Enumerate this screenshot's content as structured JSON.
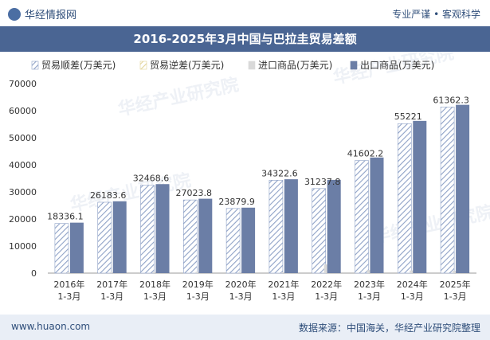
{
  "header": {
    "brand": "华经情报网",
    "tagline": "专业严谨 • 客观科学"
  },
  "footer": {
    "url": "www.huaon.com",
    "source": "数据来源：中国海关，华经产业研究院整理"
  },
  "watermark": "华经产业研究院",
  "colors": {
    "title_bg": "#4a6593",
    "export": "#6b7ea6",
    "import": "#d9d9d9",
    "surplus_hatch": "#8fa2c7",
    "deficit_hatch": "#e3d49a"
  },
  "chart_data": {
    "type": "bar",
    "title": "2016-2025年3月中国与巴拉圭贸易差额",
    "categories": [
      "2016年\n1-3月",
      "2017年\n1-3月",
      "2018年\n1-3月",
      "2019年\n1-3月",
      "2020年\n1-3月",
      "2021年\n1-3月",
      "2022年\n1-3月",
      "2023年\n1-3月",
      "2024年\n1-3月",
      "2025年\n1-3月"
    ],
    "series": [
      {
        "name": "贸易顺差(万美元)",
        "values": [
          18336.1,
          26183.6,
          32468.6,
          27023.8,
          23879.9,
          34322.6,
          31237.8,
          41602.2,
          55221,
          61362.3
        ]
      },
      {
        "name": "贸易逆差(万美元)",
        "values": [
          0,
          0,
          0,
          0,
          0,
          0,
          0,
          0,
          0,
          0
        ]
      },
      {
        "name": "进口商品(万美元)",
        "values": [
          300,
          350,
          400,
          450,
          300,
          350,
          3200,
          1100,
          1000,
          800
        ]
      },
      {
        "name": "出口商品(万美元)",
        "values": [
          18636.1,
          26533.6,
          32868.6,
          27473.8,
          24179.9,
          34672.6,
          34437.8,
          42702.2,
          56221,
          62162.3
        ]
      }
    ],
    "data_labels": [
      "18336.1",
      "26183.6",
      "32468.6",
      "27023.8",
      "23879.9",
      "34322.6",
      "31237.8",
      "41602.2",
      "55221",
      "61362.3"
    ],
    "ylim": [
      0,
      70000
    ],
    "yticks": [
      0,
      10000,
      20000,
      30000,
      40000,
      50000,
      60000,
      70000
    ],
    "legend": "top",
    "grid": false
  }
}
